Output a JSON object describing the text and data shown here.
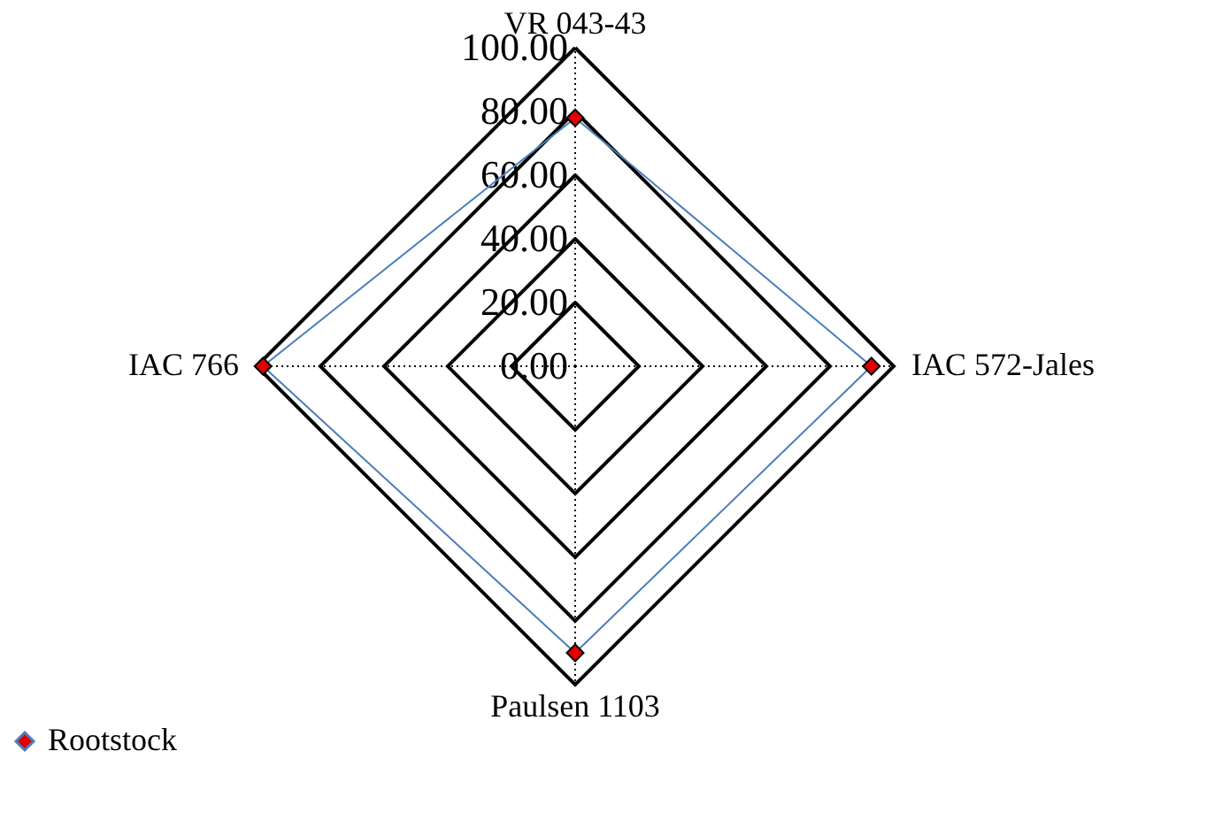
{
  "chart_data": {
    "type": "radar",
    "categories": [
      "VR 043-43",
      "IAC 572-Jales",
      "Paulsen 1103",
      "IAC 766"
    ],
    "series": [
      {
        "name": "Rootstock",
        "color": "#4a7ebb",
        "colors": [
          "#e00000",
          "#e00000",
          "#e00000",
          "#e00000"
        ],
        "values": [
          78,
          93,
          90,
          98
        ]
      }
    ],
    "ylim": [
      0,
      100
    ],
    "yticks": [
      {
        "value": 0,
        "label": "0.00"
      },
      {
        "value": 20,
        "label": "20.00"
      },
      {
        "value": 40,
        "label": "40.00"
      },
      {
        "value": 60,
        "label": "60.00"
      },
      {
        "value": 80,
        "label": "80.00"
      },
      {
        "value": 100,
        "label": "100.00"
      }
    ],
    "grid": true,
    "marker": "diamond",
    "legend": "bottom left"
  }
}
